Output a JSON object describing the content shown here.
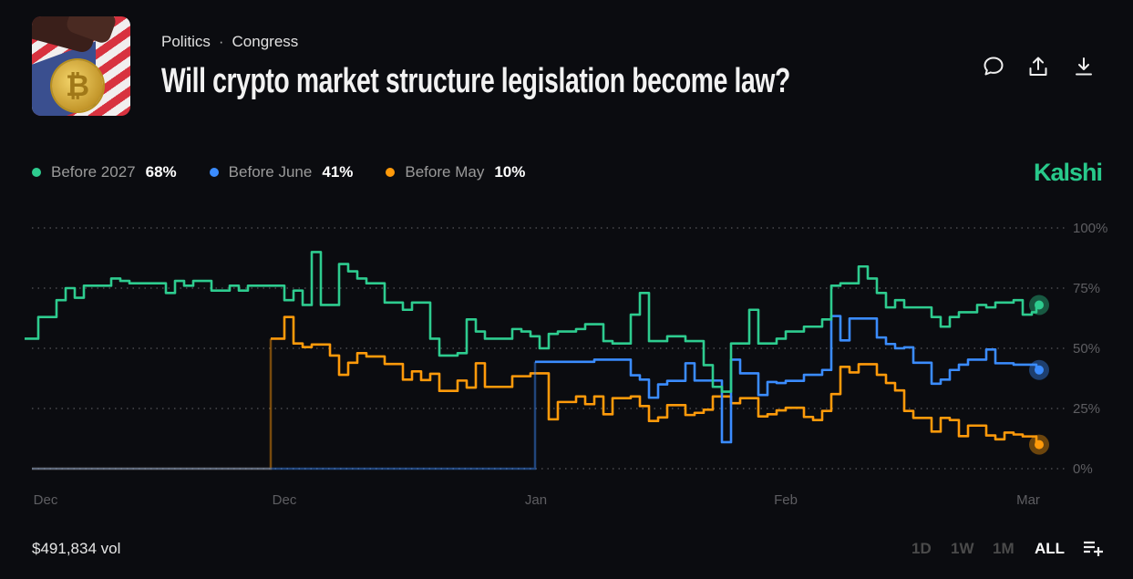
{
  "header": {
    "breadcrumb": [
      "Politics",
      "Congress"
    ],
    "breadcrumb_separator": "·",
    "title": "Will crypto market structure legislation become law?",
    "thumbnail_icon": "bitcoin-gavel-flag-image",
    "actions": [
      {
        "icon": "comment-icon"
      },
      {
        "icon": "share-icon"
      },
      {
        "icon": "download-icon"
      }
    ]
  },
  "brand": "Kalshi",
  "legend": [
    {
      "name": "Before 2027",
      "value": "68%",
      "color": "#2ecc8f"
    },
    {
      "name": "Before June",
      "value": "41%",
      "color": "#3b8cff"
    },
    {
      "name": "Before May",
      "value": "10%",
      "color": "#ff9a0a"
    }
  ],
  "footer": {
    "volume": "$491,834 vol",
    "ranges": [
      "1D",
      "1W",
      "1M",
      "ALL"
    ],
    "active_range": "ALL",
    "add_icon": "list-add-icon"
  },
  "chart_data": {
    "type": "line",
    "title": "",
    "xlabel": "",
    "ylabel": "",
    "ylim": [
      0,
      100
    ],
    "y_ticks": [
      "100%",
      "75%",
      "50%",
      "25%",
      "0%"
    ],
    "y_tick_values": [
      100,
      75,
      50,
      25,
      0
    ],
    "x_ticks": [
      "Dec",
      "Dec",
      "Jan",
      "Feb",
      "Mar"
    ],
    "grid": "horizontal dotted",
    "legend_position": "top-left",
    "series": [
      {
        "name": "Before 2027",
        "color": "#2ecc8f",
        "values": [
          54,
          63,
          63,
          70,
          75,
          71,
          76,
          76,
          76,
          79,
          78,
          77,
          77,
          77,
          77,
          73,
          78,
          76,
          78,
          78,
          74,
          74,
          76,
          74,
          76,
          76,
          76,
          76,
          70,
          74,
          68,
          90,
          68,
          68,
          85,
          82,
          79,
          77,
          77,
          69,
          69,
          66,
          69,
          69,
          54,
          47,
          47,
          48,
          62,
          57,
          54,
          54,
          54,
          58,
          57,
          55,
          50,
          56,
          57,
          57,
          58,
          60,
          60,
          53,
          52,
          52,
          64,
          73,
          53,
          53,
          55,
          55,
          53,
          53,
          43,
          34,
          32,
          52,
          52,
          66,
          52,
          52,
          54,
          57,
          57,
          59,
          59,
          62,
          76,
          77,
          77,
          84,
          79,
          73,
          67,
          70,
          67,
          67,
          67,
          63,
          59,
          63,
          65,
          65,
          68,
          67,
          69,
          69,
          70,
          64,
          65,
          68
        ]
      },
      {
        "name": "Before June",
        "color": "#3b8cff",
        "values": [
          0,
          0,
          0,
          0,
          0,
          0,
          0,
          0,
          0,
          0,
          0,
          0,
          0,
          0,
          0,
          0,
          0,
          0,
          0,
          0,
          0,
          0,
          0,
          0,
          0,
          0,
          0,
          0,
          0,
          0,
          0,
          0,
          0,
          0,
          0,
          0,
          0,
          0,
          0,
          0,
          0,
          0,
          0,
          0,
          0,
          0,
          0,
          0,
          0,
          0,
          0,
          0,
          0,
          0,
          0,
          0,
          44.4,
          44.4,
          44.4,
          44.4,
          44.4,
          44.4,
          45.3,
          45.3,
          45.3,
          45.3,
          38.8,
          37,
          29.5,
          35,
          36.5,
          36.5,
          43.8,
          36.6,
          36.6,
          36.6,
          11,
          45.3,
          39.6,
          39.6,
          30.6,
          36,
          35.6,
          36.5,
          36.5,
          39,
          39,
          41,
          63.4,
          53.3,
          62.4,
          62.4,
          62.4,
          54.5,
          51.8,
          50,
          50.4,
          44,
          44,
          35.3,
          37,
          41,
          43.2,
          45.3,
          45.3,
          49.5,
          43.8,
          43.8,
          43.2,
          43.2,
          43.2,
          41
        ]
      },
      {
        "name": "Before May",
        "color": "#ff9a0a",
        "values": [
          0,
          0,
          0,
          0,
          0,
          0,
          0,
          0,
          0,
          0,
          0,
          0,
          0,
          0,
          0,
          0,
          0,
          0,
          0,
          0,
          0,
          0,
          0,
          0,
          0,
          0,
          0,
          54,
          63,
          52,
          50.5,
          51.6,
          51.6,
          47,
          39,
          44,
          48,
          46.6,
          46.6,
          43.5,
          43.5,
          37,
          40.4,
          36.8,
          39.4,
          32.3,
          32.3,
          36.6,
          33.7,
          43.8,
          34,
          34,
          34,
          38.4,
          38.4,
          39.6,
          39.6,
          20.5,
          27.7,
          27.7,
          30,
          26.8,
          30,
          22.6,
          29.3,
          29.3,
          30,
          26,
          19.8,
          21.3,
          26.4,
          26.4,
          22.3,
          23.2,
          24.5,
          30,
          30,
          27.2,
          29.3,
          29.3,
          21.7,
          22.6,
          24.2,
          25.3,
          25.3,
          21.5,
          20.2,
          24,
          31,
          42.3,
          40,
          43.4,
          43.4,
          39,
          35.6,
          32.5,
          24,
          21.1,
          21.1,
          15.4,
          21.1,
          20.2,
          13.5,
          17.9,
          17.9,
          13.8,
          12.2,
          15,
          14.2,
          13.4,
          13.4,
          10
        ]
      }
    ]
  }
}
